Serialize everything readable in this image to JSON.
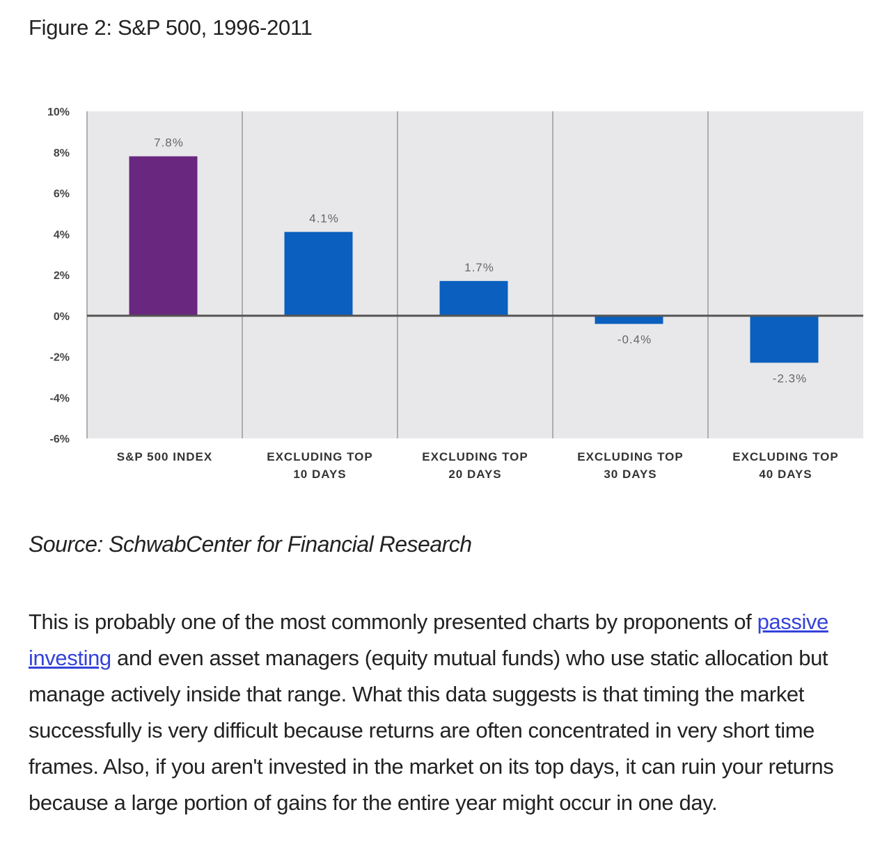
{
  "figure_title": "Figure 2: S&P 500, 1996-2011",
  "source": "Source: SchwabCenter for Financial Research",
  "paragraph": {
    "before_link": "This is probably one of the most commonly presented charts by proponents of ",
    "link_text": "passive investing",
    "after_link": " and even asset managers (equity mutual funds) who use static allocation but manage actively inside that range. What this data suggests is that timing the market successfully is very difficult because returns are often concentrated in very short time frames. Also, if you aren't invested in the market on its top days, it can ruin your returns because a large portion of gains for the entire year might occur in one day."
  },
  "chart_data": {
    "type": "bar",
    "title": "",
    "xlabel": "",
    "ylabel": "",
    "ylim": [
      -6,
      10
    ],
    "yticks": [
      10,
      8,
      6,
      4,
      2,
      0,
      -2,
      -4,
      -6
    ],
    "ytick_labels": [
      "10%",
      "8%",
      "6%",
      "4%",
      "2%",
      "0%",
      "-2%",
      "-4%",
      "-6%"
    ],
    "categories": [
      [
        "S&P 500 INDEX"
      ],
      [
        "EXCLUDING TOP",
        "10 DAYS"
      ],
      [
        "EXCLUDING TOP",
        "20 DAYS"
      ],
      [
        "EXCLUDING TOP",
        "30 DAYS"
      ],
      [
        "EXCLUDING TOP",
        "40 DAYS"
      ]
    ],
    "values": [
      7.8,
      4.1,
      1.7,
      -0.4,
      -2.3
    ],
    "data_labels": [
      "7.8%",
      "4.1%",
      "1.7%",
      "-0.4%",
      "-2.3%"
    ],
    "colors": [
      "#6a277f",
      "#0a5fbf",
      "#0a5fbf",
      "#0a5fbf",
      "#0a5fbf"
    ],
    "background": "#e8e8ea",
    "grid": false,
    "legend": "none"
  }
}
